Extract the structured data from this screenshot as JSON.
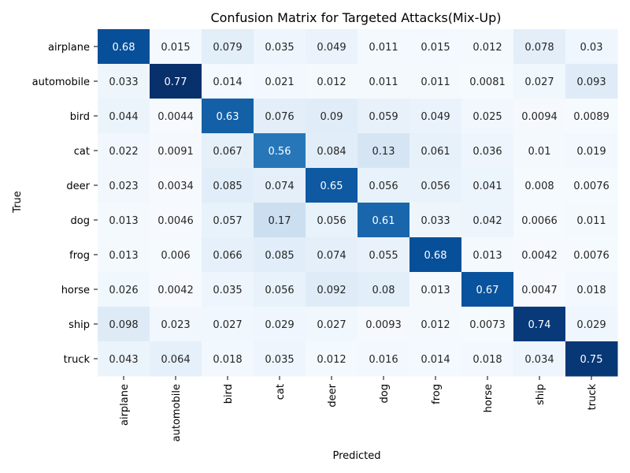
{
  "chart_data": {
    "type": "heatmap",
    "title": "Confusion Matrix for Targeted Attacks(Mix-Up)",
    "xlabel": "Predicted",
    "ylabel": "True",
    "colormap": "Blues",
    "color_range": [
      0,
      0.77
    ],
    "colorbar": false,
    "x_categories": [
      "airplane",
      "automobile",
      "bird",
      "cat",
      "deer",
      "dog",
      "frog",
      "horse",
      "ship",
      "truck"
    ],
    "y_categories": [
      "airplane",
      "automobile",
      "bird",
      "cat",
      "deer",
      "dog",
      "frog",
      "horse",
      "ship",
      "truck"
    ],
    "values": [
      [
        0.68,
        0.015,
        0.079,
        0.035,
        0.049,
        0.011,
        0.015,
        0.012,
        0.078,
        0.03
      ],
      [
        0.033,
        0.77,
        0.014,
        0.021,
        0.012,
        0.011,
        0.011,
        0.0081,
        0.027,
        0.093
      ],
      [
        0.044,
        0.0044,
        0.63,
        0.076,
        0.09,
        0.059,
        0.049,
        0.025,
        0.0094,
        0.0089
      ],
      [
        0.022,
        0.0091,
        0.067,
        0.56,
        0.084,
        0.13,
        0.061,
        0.036,
        0.01,
        0.019
      ],
      [
        0.023,
        0.0034,
        0.085,
        0.074,
        0.65,
        0.056,
        0.056,
        0.041,
        0.008,
        0.0076
      ],
      [
        0.013,
        0.0046,
        0.057,
        0.17,
        0.056,
        0.61,
        0.033,
        0.042,
        0.0066,
        0.011
      ],
      [
        0.013,
        0.006,
        0.066,
        0.085,
        0.074,
        0.055,
        0.68,
        0.013,
        0.0042,
        0.0076
      ],
      [
        0.026,
        0.0042,
        0.035,
        0.056,
        0.092,
        0.08,
        0.013,
        0.67,
        0.0047,
        0.018
      ],
      [
        0.098,
        0.023,
        0.027,
        0.029,
        0.027,
        0.0093,
        0.012,
        0.0073,
        0.74,
        0.029
      ],
      [
        0.043,
        0.064,
        0.018,
        0.035,
        0.012,
        0.016,
        0.014,
        0.018,
        0.034,
        0.75
      ]
    ]
  }
}
